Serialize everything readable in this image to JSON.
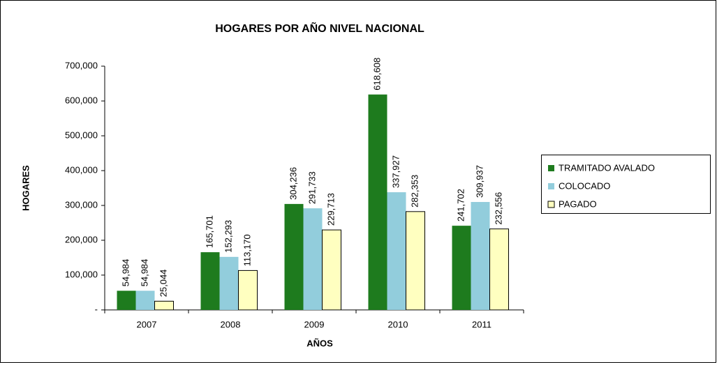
{
  "chart_data": {
    "type": "bar",
    "title": "HOGARES POR AÑO NIVEL NACIONAL",
    "x_label": "AÑOS",
    "y_label": "HOGARES",
    "categories": [
      "2007",
      "2008",
      "2009",
      "2010",
      "2011"
    ],
    "series": [
      {
        "name": "TRAMITADO AVALADO",
        "color": "#1e7b1e",
        "values": [
          54984,
          165701,
          304236,
          618608,
          241702
        ],
        "value_labels": [
          "54,984",
          "165,701",
          "304,236",
          "618,608",
          "241,702"
        ]
      },
      {
        "name": "COLOCADO",
        "color": "#92cddc",
        "values": [
          54984,
          152293,
          291733,
          337927,
          309937
        ],
        "value_labels": [
          "54,984",
          "152,293",
          "291,733",
          "337,927",
          "309,937"
        ]
      },
      {
        "name": "PAGADO",
        "color": "#ffffc0",
        "values": [
          25044,
          113170,
          229713,
          282353,
          232556
        ],
        "value_labels": [
          "25,044",
          "113,170",
          "229,713",
          "282,353",
          "232,556"
        ]
      }
    ],
    "ylim": [
      0,
      700000
    ],
    "yticks": [
      {
        "value": 0,
        "label": "-"
      },
      {
        "value": 100000,
        "label": "100,000"
      },
      {
        "value": 200000,
        "label": "200,000"
      },
      {
        "value": 300000,
        "label": "300,000"
      },
      {
        "value": 400000,
        "label": "400,000"
      },
      {
        "value": 500000,
        "label": "500,000"
      },
      {
        "value": 600000,
        "label": "600,000"
      },
      {
        "value": 700000,
        "label": "700,000"
      }
    ],
    "legend": "right",
    "grid": false
  }
}
